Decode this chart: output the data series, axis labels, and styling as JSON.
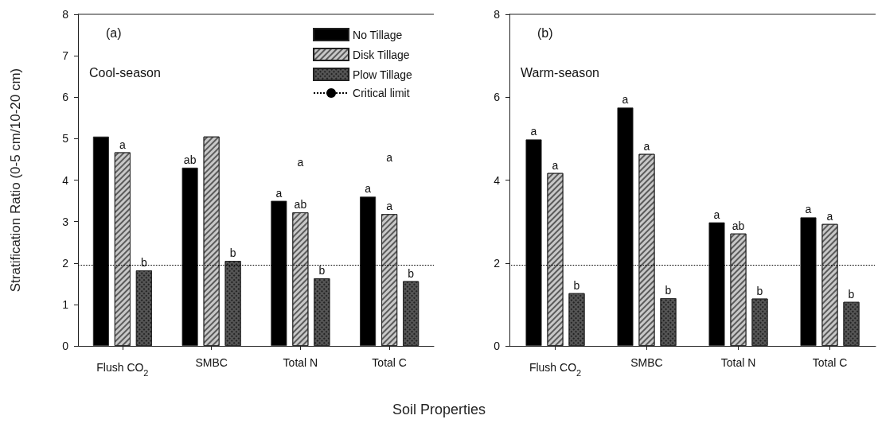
{
  "chart_data": [
    {
      "type": "bar",
      "title": "(a)",
      "subtitle": "Cool-season",
      "ylabel": "Stratification Ratio (0-5 cm/10-20 cm)",
      "xlabel": "Soil Properties",
      "categories": [
        "Flush CO$_{2}$",
        "SMBC",
        "Total N",
        "Total C"
      ],
      "series": [
        {
          "name": "No Tillage",
          "color": "#000000",
          "values": [
            5.05,
            4.3,
            3.5,
            3.6
          ],
          "value_labels": [
            null,
            "ab",
            "a",
            "a"
          ]
        },
        {
          "name": "Disk Tillage",
          "color": "#c8c8c8",
          "values": [
            4.67,
            5.05,
            3.22,
            3.18
          ],
          "value_labels": [
            "a",
            null,
            "ab",
            "a"
          ]
        },
        {
          "name": "Plow Tillage",
          "color": "#555555",
          "values": [
            1.82,
            2.05,
            1.63,
            1.56
          ],
          "value_labels": [
            "b",
            "b",
            "b",
            "b"
          ]
        }
      ],
      "ylim": [
        0,
        8
      ],
      "yticks": [
        0,
        1,
        2,
        3,
        4,
        5,
        6,
        7,
        8
      ],
      "ref_lines": [
        {
          "axis": "y",
          "value": 1.95,
          "label": "Critical limit",
          "color": "#000000",
          "line_style": "dotted"
        }
      ],
      "annotations": [
        "a",
        "a"
      ],
      "legend": "top right",
      "grid": false
    },
    {
      "type": "bar",
      "title": "(b)",
      "subtitle": "Warm-season",
      "categories": [
        "Flush CO$_{2}$",
        "SMBC",
        "Total N",
        "Total C"
      ],
      "series": [
        {
          "color": "#000000",
          "values": [
            4.98,
            5.75,
            2.98,
            3.1
          ],
          "value_labels": [
            "a",
            "a",
            "a",
            "a"
          ]
        },
        {
          "color": "#c8c8c8",
          "values": [
            4.17,
            4.63,
            2.71,
            2.94
          ],
          "value_labels": [
            "a",
            "a",
            "ab",
            "a"
          ]
        },
        {
          "color": "#555555",
          "values": [
            1.27,
            1.15,
            1.14,
            1.06
          ],
          "value_labels": [
            "b",
            "b",
            "b",
            "b"
          ]
        }
      ],
      "ylim": [
        0,
        8
      ],
      "yticks": [
        0,
        2,
        4,
        6,
        8
      ],
      "ref_lines": [
        {
          "axis": "y",
          "value": 1.95,
          "label": null,
          "color": "#000000",
          "line_style": "dotted"
        }
      ],
      "legend": false,
      "grid": false
    }
  ]
}
